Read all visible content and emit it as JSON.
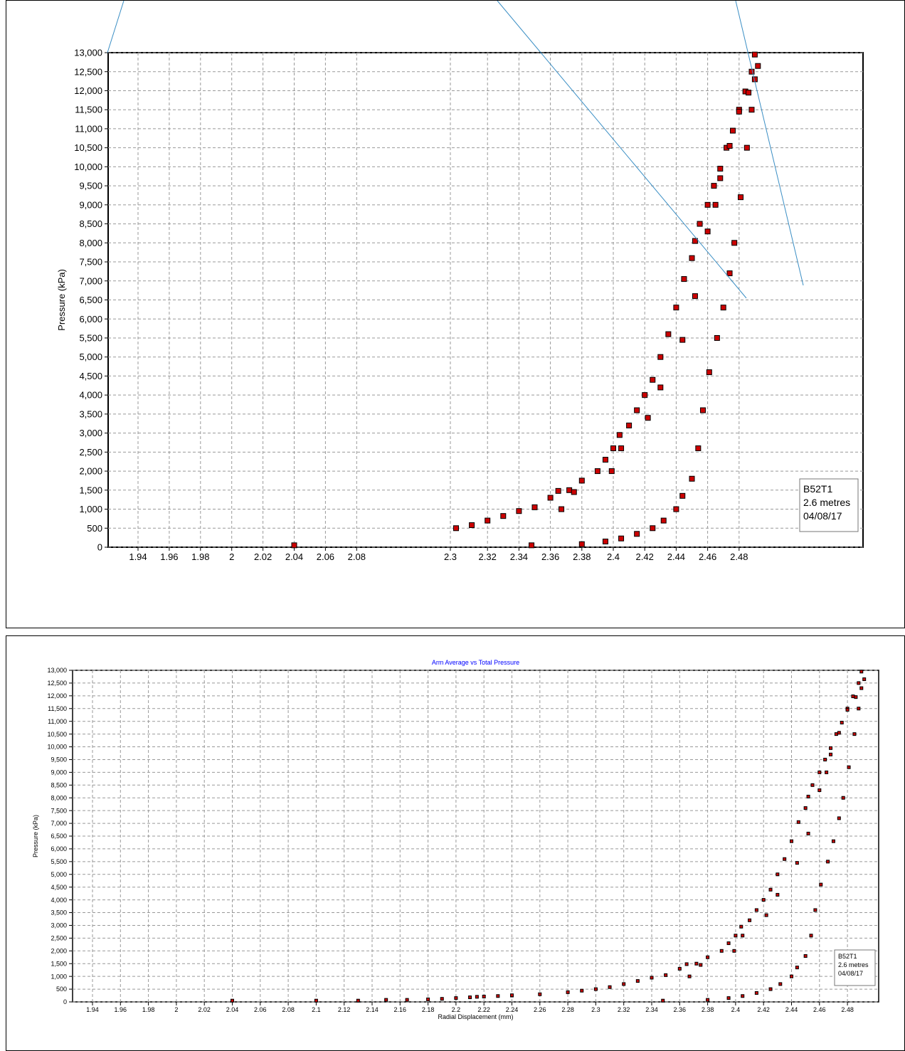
{
  "chart_data": [
    {
      "type": "scatter",
      "title": "",
      "xlabel": "",
      "ylabel": "Pressure (kPa)",
      "ylim": [
        0,
        13000
      ],
      "yticks": [
        "0",
        "500",
        "1,000",
        "1,500",
        "2,000",
        "2,500",
        "3,000",
        "3,500",
        "4,000",
        "4,500",
        "5,000",
        "5,500",
        "6,000",
        "6,500",
        "7,000",
        "7,500",
        "8,000",
        "8,500",
        "9,000",
        "9,500",
        "10,000",
        "10,500",
        "11,000",
        "11,500",
        "12,000",
        "12,500",
        "13,000"
      ],
      "xticks": [
        "1.94",
        "1.96",
        "1.98",
        "2",
        "2.02",
        "2.04",
        "2.06",
        "2.08",
        "2.3",
        "2.32",
        "2.34",
        "2.36",
        "2.38",
        "2.4",
        "2.42",
        "2.44",
        "2.46",
        "2.48"
      ],
      "legend": [
        "B52T1",
        "2.6 metres",
        "04/08/17"
      ],
      "grid": true,
      "marker_color": "#cc0000",
      "note": "x axis jumps from 2.08 to 2.3 (broken axis)"
    },
    {
      "type": "scatter",
      "title": "Arm Average vs Total Pressure",
      "xlabel": "Radial Displacement (mm)",
      "ylabel": "Pressure (kPa)",
      "ylim": [
        0,
        13000
      ],
      "xlim": [
        1.925,
        2.495
      ],
      "yticks": [
        "0",
        "500",
        "1,000",
        "1,500",
        "2,000",
        "2,500",
        "3,000",
        "3,500",
        "4,000",
        "4,500",
        "5,000",
        "5,500",
        "6,000",
        "6,500",
        "7,000",
        "7,500",
        "8,000",
        "8,500",
        "9,000",
        "9,500",
        "10,000",
        "10,500",
        "11,000",
        "11,500",
        "12,000",
        "12,500",
        "13,000"
      ],
      "xticks": [
        "1.94",
        "1.96",
        "1.98",
        "2",
        "2.02",
        "2.04",
        "2.06",
        "2.08",
        "2.1",
        "2.12",
        "2.14",
        "2.16",
        "2.18",
        "2.2",
        "2.22",
        "2.24",
        "2.26",
        "2.28",
        "2.3",
        "2.32",
        "2.34",
        "2.36",
        "2.38",
        "2.4",
        "2.42",
        "2.44",
        "2.46",
        "2.48"
      ],
      "legend": [
        "B52T1",
        "2.6 metres",
        "04/08/17"
      ],
      "grid": true,
      "marker_color": "#cc0000"
    }
  ],
  "series": {
    "low_points": [
      [
        2.04,
        50
      ],
      [
        2.1,
        50
      ],
      [
        2.13,
        50
      ],
      [
        2.15,
        80
      ],
      [
        2.165,
        80
      ],
      [
        2.18,
        100
      ],
      [
        2.19,
        120
      ],
      [
        2.2,
        150
      ],
      [
        2.21,
        180
      ],
      [
        2.215,
        200
      ],
      [
        2.22,
        210
      ],
      [
        2.23,
        230
      ],
      [
        2.24,
        250
      ]
    ],
    "loading": [
      [
        2.24,
        260
      ],
      [
        2.26,
        300
      ],
      [
        2.28,
        380
      ],
      [
        2.29,
        440
      ],
      [
        2.3,
        500
      ],
      [
        2.31,
        580
      ],
      [
        2.32,
        700
      ],
      [
        2.33,
        820
      ],
      [
        2.34,
        950
      ],
      [
        2.35,
        1050
      ],
      [
        2.36,
        1300
      ],
      [
        2.365,
        1480
      ],
      [
        2.372,
        1500
      ],
      [
        2.38,
        1750
      ],
      [
        2.39,
        2000
      ],
      [
        2.395,
        2300
      ],
      [
        2.4,
        2600
      ],
      [
        2.404,
        2950
      ],
      [
        2.41,
        3200
      ],
      [
        2.415,
        3600
      ],
      [
        2.42,
        4000
      ],
      [
        2.425,
        4400
      ],
      [
        2.43,
        5000
      ],
      [
        2.435,
        5600
      ],
      [
        2.44,
        6300
      ],
      [
        2.445,
        7050
      ],
      [
        2.45,
        7600
      ],
      [
        2.452,
        8050
      ],
      [
        2.455,
        8500
      ],
      [
        2.46,
        9000
      ],
      [
        2.464,
        9500
      ],
      [
        2.468,
        9950
      ],
      [
        2.472,
        10500
      ],
      [
        2.476,
        10950
      ],
      [
        2.48,
        11500
      ],
      [
        2.484,
        11980
      ],
      [
        2.488,
        12500
      ],
      [
        2.49,
        12950
      ]
    ],
    "reload": [
      [
        2.367,
        1000
      ],
      [
        2.375,
        1450
      ],
      [
        2.399,
        2000
      ],
      [
        2.405,
        2600
      ],
      [
        2.422,
        3400
      ],
      [
        2.43,
        4200
      ],
      [
        2.444,
        5450
      ],
      [
        2.452,
        6600
      ],
      [
        2.46,
        8300
      ],
      [
        2.465,
        9000
      ],
      [
        2.468,
        9700
      ],
      [
        2.474,
        10550
      ],
      [
        2.48,
        11450
      ],
      [
        2.486,
        11950
      ]
    ],
    "unload": [
      [
        2.348,
        50
      ],
      [
        2.38,
        80
      ],
      [
        2.395,
        150
      ],
      [
        2.405,
        230
      ],
      [
        2.415,
        350
      ],
      [
        2.425,
        500
      ],
      [
        2.432,
        700
      ],
      [
        2.44,
        1000
      ],
      [
        2.444,
        1350
      ],
      [
        2.45,
        1800
      ],
      [
        2.454,
        2600
      ],
      [
        2.457,
        3600
      ],
      [
        2.461,
        4600
      ],
      [
        2.466,
        5500
      ],
      [
        2.47,
        6300
      ],
      [
        2.474,
        7200
      ],
      [
        2.477,
        8000
      ],
      [
        2.481,
        9200
      ],
      [
        2.485,
        10500
      ],
      [
        2.488,
        11500
      ],
      [
        2.49,
        12300
      ],
      [
        2.492,
        12650
      ]
    ]
  }
}
